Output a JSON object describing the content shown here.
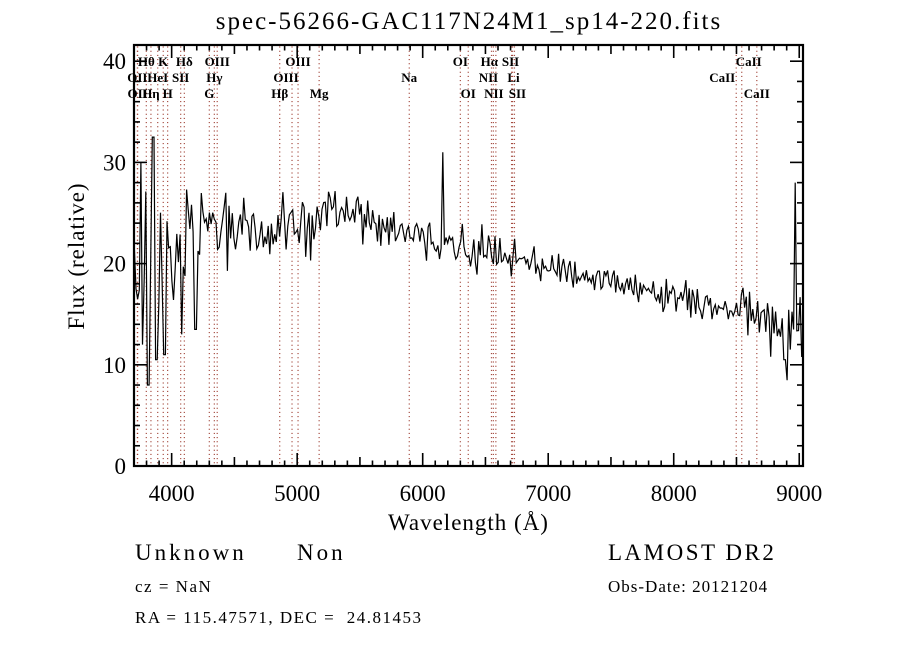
{
  "chart_data": {
    "type": "line",
    "title": "spec-56266-GAC117N24M1_sp14-220.fits",
    "xlabel": "Wavelength (Å)",
    "ylabel": "Flux (relative)",
    "xlim": [
      3700,
      9030
    ],
    "ylim": [
      0,
      41.6
    ],
    "xticks": [
      4000,
      5000,
      6000,
      7000,
      8000,
      9000
    ],
    "yticks": [
      0,
      10,
      20,
      30,
      40
    ],
    "x_minor_step": 100,
    "y_minor_step": 2,
    "line_color": "#000000",
    "marker_color": "#9a3528",
    "legend": "none",
    "grid": "off",
    "spectral_lines": [
      {
        "label": "Hθ",
        "wavelength": 3798,
        "row": 1
      },
      {
        "label": "K",
        "wavelength": 3933,
        "row": 1
      },
      {
        "label": "Hδ",
        "wavelength": 4101,
        "row": 1
      },
      {
        "label": "OIII",
        "wavelength": 4363,
        "row": 1
      },
      {
        "label": "OIII",
        "wavelength": 5007,
        "row": 1
      },
      {
        "label": "OI",
        "wavelength": 6300,
        "row": 1
      },
      {
        "label": "Hα",
        "wavelength": 6563,
        "row": 1,
        "dx": -4
      },
      {
        "label": "SII",
        "wavelength": 6716,
        "row": 1,
        "dx": -2
      },
      {
        "label": "CaII",
        "wavelength": 8542,
        "row": 1,
        "dx": 7
      },
      {
        "label": "OII",
        "wavelength": 3727,
        "row": 2
      },
      {
        "label": "HeI",
        "wavelength": 3889,
        "row": 2
      },
      {
        "label": "SII",
        "wavelength": 4072,
        "row": 2
      },
      {
        "label": "Hγ",
        "wavelength": 4340,
        "row": 2
      },
      {
        "label": "OIII",
        "wavelength": 4959,
        "row": 2,
        "dx": -6
      },
      {
        "label": "Na",
        "wavelength": 5893,
        "row": 2
      },
      {
        "label": "NII",
        "wavelength": 6548,
        "row": 2,
        "dx": -3
      },
      {
        "label": "Li",
        "wavelength": 6708,
        "row": 2,
        "dx": 2
      },
      {
        "label": "CaII",
        "wavelength": 8498,
        "row": 2,
        "dx": -14
      },
      {
        "label": "OII",
        "wavelength": 3729,
        "row": 3
      },
      {
        "label": "Hη",
        "wavelength": 3835,
        "row": 3
      },
      {
        "label": "H",
        "wavelength": 3968,
        "row": 3
      },
      {
        "label": "G",
        "wavelength": 4300,
        "row": 3
      },
      {
        "label": "Hβ",
        "wavelength": 4861,
        "row": 3
      },
      {
        "label": "Mg",
        "wavelength": 5175,
        "row": 3
      },
      {
        "label": "OI",
        "wavelength": 6363,
        "row": 3
      },
      {
        "label": "NII",
        "wavelength": 6583,
        "row": 3,
        "dx": -2
      },
      {
        "label": "SII",
        "wavelength": 6731,
        "row": 3,
        "dx": 3
      },
      {
        "label": "CaII",
        "wavelength": 8662,
        "row": 3
      }
    ],
    "spectrum": {
      "sample_step": 13,
      "continuum": [
        [
          3700,
          21
        ],
        [
          3740,
          23
        ],
        [
          3790,
          22
        ],
        [
          3850,
          22
        ],
        [
          3910,
          21.5
        ],
        [
          3970,
          21.8
        ],
        [
          4050,
          22.3
        ],
        [
          4150,
          22.4
        ],
        [
          4250,
          22.8
        ],
        [
          4350,
          23.2
        ],
        [
          4450,
          23.6
        ],
        [
          4550,
          23.9
        ],
        [
          4650,
          23.6
        ],
        [
          4750,
          23.6
        ],
        [
          4850,
          23.7
        ],
        [
          4950,
          23.7
        ],
        [
          5050,
          23.9
        ],
        [
          5150,
          24.2
        ],
        [
          5250,
          25
        ],
        [
          5330,
          25.5
        ],
        [
          5420,
          25
        ],
        [
          5520,
          24.3
        ],
        [
          5620,
          23.8
        ],
        [
          5720,
          23.4
        ],
        [
          5820,
          23.1
        ],
        [
          5920,
          22.8
        ],
        [
          6020,
          22.5
        ],
        [
          6120,
          22.3
        ],
        [
          6220,
          22.1
        ],
        [
          6320,
          21.8
        ],
        [
          6420,
          21.5
        ],
        [
          6520,
          21.2
        ],
        [
          6620,
          20.9
        ],
        [
          6720,
          20.6
        ],
        [
          6820,
          20.3
        ],
        [
          6920,
          20
        ],
        [
          7020,
          19.6
        ],
        [
          7120,
          19.3
        ],
        [
          7220,
          19
        ],
        [
          7320,
          18.7
        ],
        [
          7420,
          18.3
        ],
        [
          7520,
          18
        ],
        [
          7620,
          17.6
        ],
        [
          7720,
          17.4
        ],
        [
          7820,
          17.1
        ],
        [
          7920,
          16.8
        ],
        [
          8020,
          16.5
        ],
        [
          8120,
          16.3
        ],
        [
          8220,
          16
        ],
        [
          8320,
          15.8
        ],
        [
          8420,
          15.6
        ],
        [
          8520,
          15.3
        ],
        [
          8620,
          15
        ],
        [
          8720,
          14.6
        ],
        [
          8820,
          14.2
        ],
        [
          8920,
          13.8
        ],
        [
          9030,
          13
        ]
      ],
      "noise_sigma": [
        [
          3700,
          3830,
          5
        ],
        [
          3830,
          3970,
          4.2
        ],
        [
          3970,
          4160,
          3
        ],
        [
          4160,
          4460,
          2.1
        ],
        [
          4460,
          5160,
          1.4
        ],
        [
          5160,
          5620,
          1.1
        ],
        [
          5620,
          6160,
          1
        ],
        [
          6160,
          6620,
          0.9
        ],
        [
          6620,
          7220,
          0.8
        ],
        [
          7220,
          7920,
          0.7
        ],
        [
          7920,
          8520,
          0.85
        ],
        [
          8520,
          8870,
          1.2
        ],
        [
          8870,
          9030,
          1.7
        ]
      ],
      "peaks": [
        [
          3760,
          30
        ],
        [
          3805,
          35.5
        ],
        [
          3850,
          32.5
        ],
        [
          6163,
          31
        ],
        [
          8968,
          28
        ]
      ],
      "dips": [
        [
          3770,
          12
        ],
        [
          3812,
          8
        ],
        [
          3876,
          10.5
        ],
        [
          3944,
          11
        ],
        [
          4077,
          13
        ],
        [
          4190,
          13.5
        ],
        [
          8775,
          10.8
        ],
        [
          8885,
          10.5
        ],
        [
          8930,
          11.5
        ]
      ]
    }
  },
  "annotations": {
    "class": "Unknown",
    "subclass": "Non",
    "cz": "cz = NaN",
    "radec": "RA = 115.47571, DEC =  24.81453",
    "survey": "LAMOST DR2",
    "obs_date": "Obs-Date: 20121204"
  }
}
